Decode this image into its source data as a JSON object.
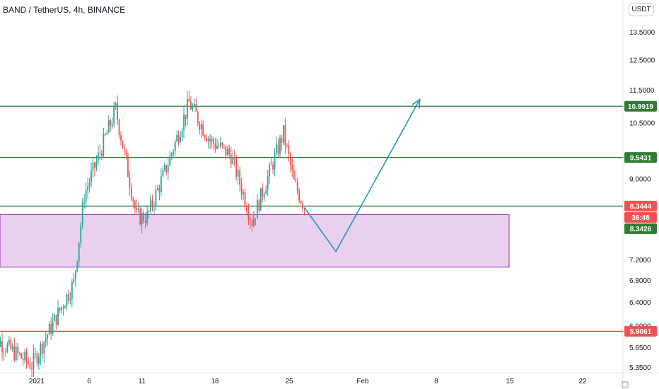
{
  "header": {
    "title": "BAND / TetherUS, 4h, BINANCE",
    "currency": "USDT"
  },
  "colors": {
    "up": "#26a69a",
    "down": "#ef5350",
    "resistance_line": "#2e7d32",
    "support_line": "#e53935",
    "zone_fill": "#e6c8ec",
    "zone_border": "#9c27b0",
    "projection": "#2196c3"
  },
  "chart_data": {
    "type": "candlestick",
    "symbol": "BAND/USDT",
    "interval": "4h",
    "exchange": "BINANCE",
    "y_axis": {
      "scale": "log",
      "ticks": [
        "13.5000",
        "12.5000",
        "11.5000",
        "10.5000",
        "9.0000",
        "7.2000",
        "6.8000",
        "6.4000",
        "6.0000",
        "5.6500",
        "5.3500"
      ]
    },
    "x_axis": {
      "ticks": [
        "2021",
        "6",
        "11",
        "18",
        "25",
        "Feb",
        "8",
        "15",
        "22"
      ]
    },
    "horizontal_levels": [
      {
        "value": "10.9919",
        "color": "green"
      },
      {
        "value": "9.5431",
        "color": "green"
      },
      {
        "value": "8.3444",
        "color": "green"
      },
      {
        "value": "5.9061",
        "color": "red"
      }
    ],
    "price_labels": [
      {
        "text": "10.9919",
        "kind": "level"
      },
      {
        "text": "9.5431",
        "kind": "level"
      },
      {
        "text": "8.3444",
        "kind": "level-red"
      },
      {
        "text": "36:48",
        "kind": "countdown"
      },
      {
        "text": "8.3426",
        "kind": "last-price"
      },
      {
        "text": "5.9061",
        "kind": "level-red"
      }
    ],
    "demand_zone": {
      "low": 7.05,
      "high": 8.15
    },
    "projection_path": [
      {
        "date": "2021-01-27",
        "price": 8.31
      },
      {
        "date": "2021-01-30",
        "price": 7.36
      },
      {
        "date": "2021-02-07",
        "price": 11.2
      }
    ],
    "price_anchors": [
      {
        "date": "2020-12-28",
        "price": 5.85
      },
      {
        "date": "2021-01-01",
        "price": 5.38
      },
      {
        "date": "2021-01-05",
        "price": 6.75
      },
      {
        "date": "2021-01-06",
        "price": 8.6
      },
      {
        "date": "2021-01-09",
        "price": 10.9
      },
      {
        "date": "2021-01-11",
        "price": 8.1
      },
      {
        "date": "2021-01-12",
        "price": 8.1
      },
      {
        "date": "2021-01-14",
        "price": 9.4
      },
      {
        "date": "2021-01-16",
        "price": 11.1
      },
      {
        "date": "2021-01-18",
        "price": 10.0
      },
      {
        "date": "2021-01-20",
        "price": 9.6
      },
      {
        "date": "2021-01-22",
        "price": 8.0
      },
      {
        "date": "2021-01-25",
        "price": 10.2
      },
      {
        "date": "2021-01-26",
        "price": 8.9
      },
      {
        "date": "2021-01-27",
        "price": 8.34
      }
    ]
  }
}
